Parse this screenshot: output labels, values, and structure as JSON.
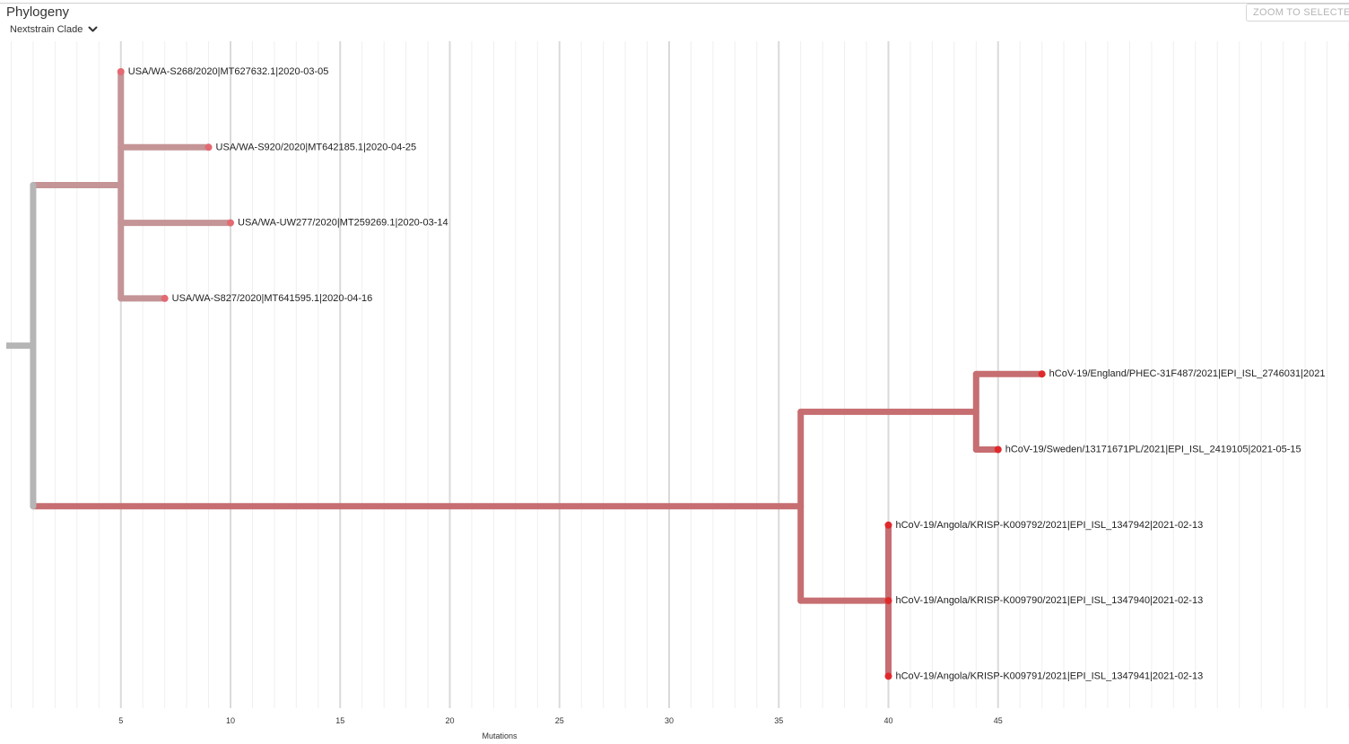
{
  "panel": {
    "title": "Phylogeny",
    "color_by": "Nextstrain Clade",
    "zoom_button": "ZOOM TO SELECTED"
  },
  "icons": {
    "color_by_dropdown": "chevron-down-icon"
  },
  "colors": {
    "root_branch": "#b5b5b5",
    "wa_clade_branch": "#c49496",
    "wa_clade_tip": "#e36a72",
    "voc_clade_branch": "#c66e71",
    "voc_clade_tip": "#e0292c",
    "gridline_major": "#dadada",
    "gridline_minor": "#efefef"
  },
  "chart_data": {
    "type": "tree",
    "xlabel": "Mutations",
    "x_ticks": [
      5,
      10,
      15,
      20,
      25,
      30,
      35,
      40,
      45
    ],
    "x_range": [
      -1,
      60
    ],
    "tips": [
      {
        "name": "USA/WA-S268/2020|MT627632.1|2020-03-05",
        "divergence": 5,
        "clade": "wa"
      },
      {
        "name": "USA/WA-S920/2020|MT642185.1|2020-04-25",
        "divergence": 9,
        "clade": "wa"
      },
      {
        "name": "USA/WA-UW277/2020|MT259269.1|2020-03-14",
        "divergence": 10,
        "clade": "wa"
      },
      {
        "name": "USA/WA-S827/2020|MT641595.1|2020-04-16",
        "divergence": 7,
        "clade": "wa"
      },
      {
        "name": "hCoV-19/England/PHEC-31F487/2021|EPI_ISL_2746031|2021",
        "divergence": 47,
        "clade": "voc"
      },
      {
        "name": "hCoV-19/Sweden/13171671PL/2021|EPI_ISL_2419105|2021-05-15",
        "divergence": 45,
        "clade": "voc"
      },
      {
        "name": "hCoV-19/Angola/KRISP-K009792/2021|EPI_ISL_1347942|2021-02-13",
        "divergence": 40,
        "clade": "voc"
      },
      {
        "name": "hCoV-19/Angola/KRISP-K009790/2021|EPI_ISL_1347940|2021-02-13",
        "divergence": 40,
        "clade": "voc"
      },
      {
        "name": "hCoV-19/Angola/KRISP-K009791/2021|EPI_ISL_1347941|2021-02-13",
        "divergence": 40,
        "clade": "voc"
      }
    ],
    "internal_nodes": [
      {
        "id": "root",
        "divergence": 1,
        "children": [
          "wa_node",
          "voc_node"
        ],
        "clade": "root"
      },
      {
        "id": "wa_node",
        "divergence": 5,
        "children": [
          0,
          1,
          2,
          3
        ],
        "clade": "wa"
      },
      {
        "id": "voc_node",
        "divergence": 36,
        "children": [
          "eng_swe_node",
          "angola_node"
        ],
        "clade": "voc"
      },
      {
        "id": "eng_swe_node",
        "divergence": 44,
        "children": [
          4,
          5
        ],
        "clade": "voc"
      },
      {
        "id": "angola_node",
        "divergence": 40,
        "children": [
          6,
          7,
          8
        ],
        "clade": "voc"
      }
    ]
  }
}
